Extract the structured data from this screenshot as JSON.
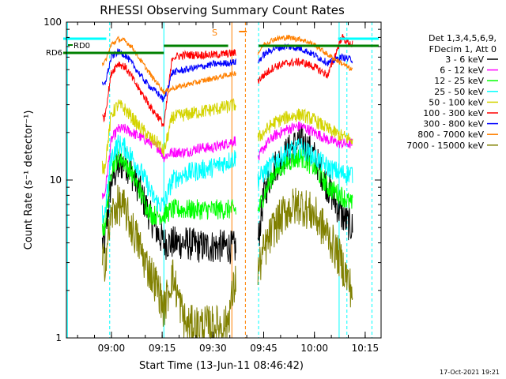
{
  "chart_data": {
    "type": "line",
    "title": "RHESSI Observing Summary Count Rates",
    "xlabel": "Start Time (13-Jun-11 08:46:42)",
    "ylabel": "Count Rate (s⁻¹ detector⁻¹)",
    "y_scale": "log",
    "ylim": [
      1,
      100
    ],
    "xlim_minutes": [
      46.7,
      73.7
    ],
    "y_ticks": [
      {
        "value": 1,
        "label": "1"
      },
      {
        "value": 10,
        "label": "10"
      },
      {
        "value": 100,
        "label": "100"
      }
    ],
    "x_ticks": [
      {
        "value": 60,
        "label": "09:00"
      },
      {
        "value": 75,
        "label": "09:15"
      },
      {
        "value": 90,
        "label": "09:30"
      },
      {
        "value": 105,
        "label": "09:45"
      },
      {
        "value": 120,
        "label": "10:00"
      },
      {
        "value": 135,
        "label": "10:15"
      }
    ],
    "legend_header": [
      "Det 1,3,4,5,6,9,",
      "FDecim 1, Att 0"
    ],
    "legend_position": "right",
    "annotations": {
      "rd0": "RD0",
      "rd6": "RD6",
      "s_flag": "S",
      "footer": "17-Oct-2021 19:21"
    },
    "data_gaps_minutes": [
      [
        75.5,
        75.5
      ],
      [
        98,
        105
      ]
    ],
    "series": [
      {
        "name": "3 - 6 keV",
        "color": "#000000",
        "x": [
          58,
          60,
          62,
          64,
          66,
          68,
          70,
          72,
          74,
          75.5,
          78,
          82,
          86,
          90,
          94,
          97,
          103,
          105,
          108,
          112,
          116,
          120,
          124,
          128,
          131
        ],
        "y": [
          4,
          10,
          12,
          13,
          11,
          9,
          7,
          5.5,
          4.5,
          4,
          4,
          4,
          3.8,
          3.8,
          3.8,
          3.7,
          3.5,
          8,
          12,
          15,
          18,
          14,
          9,
          6,
          5
        ]
      },
      {
        "name": "6 - 12 keV",
        "color": "#ff00ff",
        "x": [
          58,
          60,
          62,
          64,
          66,
          68,
          70,
          72,
          74,
          75.5,
          78,
          82,
          86,
          90,
          94,
          97,
          103,
          105,
          108,
          112,
          116,
          120,
          124,
          128,
          131
        ],
        "y": [
          8,
          18,
          21,
          21,
          20,
          19,
          18,
          17,
          16,
          14,
          15,
          15,
          16,
          16,
          17,
          18,
          13,
          16,
          19,
          21,
          22,
          20,
          18,
          17,
          17
        ]
      },
      {
        "name": "12 - 25 keV",
        "color": "#00ff00",
        "x": [
          58,
          60,
          62,
          64,
          66,
          68,
          70,
          72,
          74,
          75.5,
          78,
          82,
          86,
          90,
          94,
          97,
          103,
          105,
          108,
          112,
          116,
          120,
          124,
          128,
          131
        ],
        "y": [
          5,
          12,
          14,
          13,
          11,
          9,
          7,
          6,
          6,
          6,
          6.5,
          6.5,
          6.5,
          6.5,
          6.5,
          6.5,
          6,
          8,
          11,
          13,
          14,
          12,
          9,
          8,
          7
        ]
      },
      {
        "name": "25 - 50 keV",
        "color": "#00ffff",
        "x": [
          58,
          60,
          62,
          64,
          66,
          68,
          70,
          72,
          74,
          75.5,
          78,
          82,
          86,
          90,
          94,
          97,
          103,
          105,
          108,
          112,
          116,
          120,
          124,
          128,
          131
        ],
        "y": [
          6,
          14,
          17,
          16,
          14,
          12,
          10,
          8,
          7,
          7,
          10,
          11,
          11.5,
          12,
          13,
          14,
          10,
          11,
          13,
          15,
          16,
          14,
          12,
          11,
          11
        ]
      },
      {
        "name": "50 - 100 keV",
        "color": "#d4d400",
        "x": [
          58,
          60,
          62,
          64,
          66,
          68,
          70,
          72,
          74,
          75.5,
          78,
          82,
          86,
          90,
          94,
          97,
          103,
          105,
          108,
          112,
          116,
          120,
          124,
          128,
          131
        ],
        "y": [
          12,
          26,
          30,
          28,
          25,
          22,
          20,
          18,
          17,
          15,
          25,
          26,
          27,
          28,
          29,
          30,
          18,
          20,
          23,
          25,
          26,
          24,
          21,
          19,
          18
        ]
      },
      {
        "name": "100 - 300 keV",
        "color": "#ff0000",
        "x": [
          58,
          60,
          62,
          64,
          66,
          68,
          70,
          72,
          74,
          75.5,
          78,
          82,
          86,
          90,
          94,
          97,
          103,
          105,
          108,
          112,
          116,
          120,
          124,
          128,
          131
        ],
        "y": [
          25,
          48,
          55,
          52,
          45,
          38,
          33,
          28,
          25,
          22,
          60,
          62,
          62,
          62,
          63,
          64,
          42,
          46,
          52,
          55,
          56,
          52,
          46,
          80,
          72
        ]
      },
      {
        "name": "300 - 800 keV",
        "color": "#0000ff",
        "x": [
          58,
          60,
          62,
          64,
          66,
          68,
          70,
          72,
          74,
          75.5,
          78,
          82,
          86,
          90,
          94,
          97,
          103,
          105,
          108,
          112,
          116,
          120,
          124,
          128,
          131
        ],
        "y": [
          40,
          60,
          65,
          62,
          55,
          48,
          42,
          38,
          35,
          32,
          48,
          50,
          52,
          54,
          55,
          56,
          55,
          62,
          68,
          70,
          68,
          62,
          55,
          60,
          58
        ]
      },
      {
        "name": "800 - 7000 keV",
        "color": "#ff8000",
        "x": [
          58,
          60,
          62,
          64,
          66,
          68,
          70,
          72,
          74,
          75.5,
          78,
          82,
          86,
          90,
          94,
          97,
          103,
          105,
          108,
          112,
          116,
          120,
          124,
          128,
          131
        ],
        "y": [
          55,
          72,
          78,
          76,
          70,
          60,
          52,
          45,
          40,
          36,
          38,
          40,
          42,
          44,
          46,
          48,
          62,
          72,
          78,
          80,
          78,
          72,
          62,
          55,
          50
        ]
      },
      {
        "name": "7000 - 15000 keV",
        "color": "#808000",
        "x": [
          58,
          60,
          62,
          64,
          66,
          68,
          70,
          72,
          74,
          75.5,
          78,
          82,
          86,
          90,
          94,
          97,
          103,
          105,
          108,
          112,
          116,
          120,
          124,
          128,
          131
        ],
        "y": [
          3,
          6,
          7,
          6.5,
          5,
          4,
          3,
          2.5,
          2,
          1.5,
          2.5,
          1.2,
          1.2,
          1.2,
          1.2,
          2.5,
          2.5,
          3.5,
          5,
          6.5,
          7,
          6,
          4.5,
          3,
          2
        ]
      }
    ]
  }
}
